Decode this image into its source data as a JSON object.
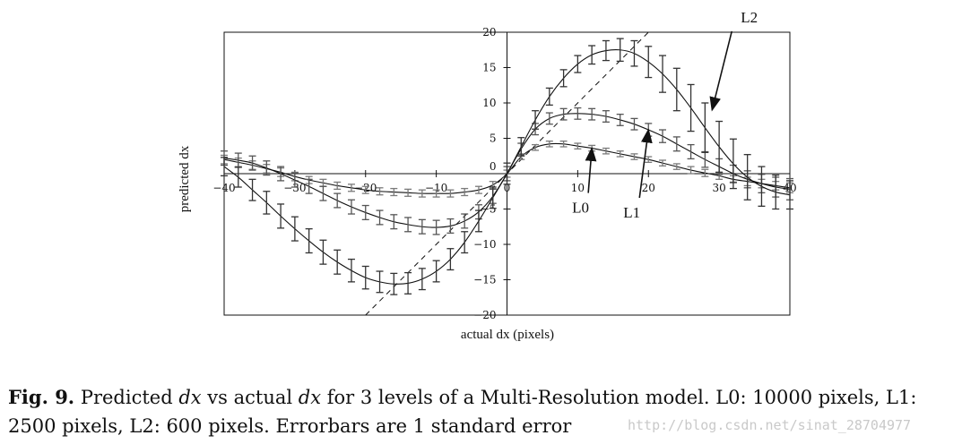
{
  "chart_data": {
    "type": "line",
    "xlabel": "actual dx (pixels)",
    "ylabel": "predicted dx",
    "xlim": [
      -40,
      40
    ],
    "ylim": [
      -20,
      20
    ],
    "x_ticks": [
      -40,
      -30,
      -20,
      -10,
      0,
      10,
      20,
      30,
      40
    ],
    "x_tick_labels": [
      "−40",
      "−30",
      "−20",
      "−10",
      "0",
      "10",
      "20",
      "30",
      "40"
    ],
    "y_ticks": [
      -20,
      -15,
      -10,
      -5,
      0,
      5,
      10,
      15,
      20
    ],
    "y_tick_labels": [
      "−20",
      "−15",
      "−10",
      "−5",
      "0",
      "5",
      "10",
      "15",
      "20"
    ],
    "x": [
      -40,
      -38,
      -36,
      -34,
      -32,
      -30,
      -28,
      -26,
      -24,
      -22,
      -20,
      -18,
      -16,
      -14,
      -12,
      -10,
      -8,
      -6,
      -4,
      -2,
      0,
      2,
      4,
      6,
      8,
      10,
      12,
      14,
      16,
      18,
      20,
      22,
      24,
      26,
      28,
      30,
      32,
      34,
      36,
      38,
      40
    ],
    "series": [
      {
        "name": "L0",
        "values": [
          2.0,
          1.6,
          1.2,
          0.7,
          0.2,
          -0.4,
          -0.9,
          -1.3,
          -1.7,
          -2.0,
          -2.3,
          -2.5,
          -2.6,
          -2.7,
          -2.8,
          -2.8,
          -2.8,
          -2.6,
          -2.3,
          -1.6,
          0,
          2.4,
          3.7,
          4.2,
          4.2,
          3.9,
          3.6,
          3.2,
          2.8,
          2.4,
          2.0,
          1.5,
          1.0,
          0.5,
          0.1,
          -0.3,
          -0.8,
          -1.1,
          -1.4,
          -1.7,
          -2.0
        ],
        "errors": [
          0.6,
          0.6,
          0.6,
          0.6,
          0.6,
          0.6,
          0.5,
          0.5,
          0.5,
          0.5,
          0.5,
          0.5,
          0.5,
          0.5,
          0.5,
          0.5,
          0.5,
          0.5,
          0.5,
          0.5,
          0.5,
          0.4,
          0.4,
          0.4,
          0.4,
          0.4,
          0.4,
          0.4,
          0.4,
          0.4,
          0.4,
          0.4,
          0.4,
          0.5,
          0.5,
          0.5,
          0.5,
          0.6,
          0.6,
          0.6,
          0.7
        ]
      },
      {
        "name": "L1",
        "values": [
          2.2,
          1.9,
          1.5,
          0.8,
          0.0,
          -0.9,
          -1.8,
          -2.8,
          -3.8,
          -4.7,
          -5.5,
          -6.2,
          -6.8,
          -7.2,
          -7.5,
          -7.6,
          -7.4,
          -6.7,
          -5.4,
          -3.2,
          0,
          3.5,
          6.3,
          7.8,
          8.4,
          8.5,
          8.4,
          8.1,
          7.6,
          7.0,
          6.2,
          5.3,
          4.2,
          3.1,
          2.0,
          1.0,
          0.0,
          -0.8,
          -1.4,
          -1.9,
          -2.2
        ],
        "errors": [
          1.0,
          1.0,
          1.0,
          1.0,
          1.0,
          1.0,
          1.0,
          1.0,
          1.0,
          1.0,
          1.0,
          1.0,
          1.0,
          1.0,
          1.0,
          1.0,
          1.0,
          1.0,
          1.0,
          1.0,
          1.0,
          0.8,
          0.8,
          0.8,
          0.8,
          0.8,
          0.8,
          0.8,
          0.8,
          0.8,
          0.9,
          0.9,
          1.0,
          1.0,
          1.1,
          1.1,
          1.2,
          1.2,
          1.3,
          1.4,
          1.5
        ]
      },
      {
        "name": "L2",
        "values": [
          1.0,
          -0.5,
          -2.3,
          -4.1,
          -6.0,
          -7.8,
          -9.5,
          -11.1,
          -12.5,
          -13.7,
          -14.7,
          -15.3,
          -15.6,
          -15.5,
          -14.9,
          -13.8,
          -12.1,
          -9.7,
          -6.7,
          -3.4,
          0,
          3.8,
          7.6,
          10.9,
          13.5,
          15.5,
          16.8,
          17.4,
          17.5,
          17.0,
          15.8,
          14.1,
          11.9,
          9.3,
          6.5,
          3.8,
          1.4,
          -0.5,
          -1.8,
          -2.6,
          -3.0
        ],
        "errors": [
          1.3,
          1.4,
          1.5,
          1.6,
          1.7,
          1.7,
          1.7,
          1.7,
          1.7,
          1.6,
          1.6,
          1.5,
          1.5,
          1.5,
          1.5,
          1.5,
          1.5,
          1.5,
          1.5,
          1.5,
          1.5,
          1.3,
          1.3,
          1.2,
          1.2,
          1.2,
          1.3,
          1.4,
          1.6,
          1.8,
          2.2,
          2.6,
          3.0,
          3.3,
          3.5,
          3.6,
          3.5,
          3.2,
          2.8,
          2.4,
          2.0
        ]
      }
    ],
    "reference_line": {
      "type": "y=x",
      "style": "dashed"
    },
    "annotations": [
      {
        "text": "L0",
        "points_to": {
          "x": 12,
          "y": 3.6
        }
      },
      {
        "text": "L1",
        "points_to": {
          "x": 20,
          "y": 6.2
        }
      },
      {
        "text": "L2",
        "points_to": {
          "x": 29,
          "y": 9.0
        }
      }
    ],
    "grid": false
  },
  "caption": {
    "prefix": "Fig. 9.",
    "text": "Predicted dx vs actual dx for 3 levels of a Multi-Resolution model. L0: 10000 pixels, L1: 2500 pixels, L2: 600 pixels. Errorbars are 1 standard error"
  },
  "watermark": "http://blog.csdn.net/sinat_28704977"
}
